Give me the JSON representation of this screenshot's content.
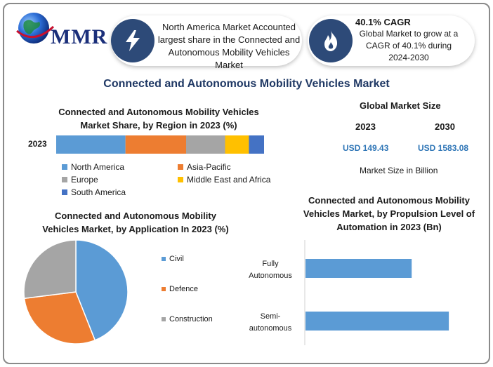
{
  "logo": {
    "text": "MMR"
  },
  "header": {
    "card1_text": "North America Market Accounted largest share in the Connected and Autonomous Mobility Vehicles Market",
    "card1_icon": "lightning-icon",
    "card2_title": "40.1% CAGR",
    "card2_text": "Global Market to grow at a CAGR of 40.1% during 2024-2030",
    "card2_icon": "flame-icon"
  },
  "main_title": "Connected and Autonomous Mobility Vehicles Market",
  "market_size": {
    "title": "Global Market Size",
    "year1": "2023",
    "year2": "2030",
    "value1": "USD 149.43",
    "value2": "USD 1583.08",
    "note": "Market Size in Billion"
  },
  "colors": {
    "north_america": "#5b9bd5",
    "asia_pacific": "#ed7d31",
    "europe": "#a5a5a5",
    "middle_east_africa": "#ffc000",
    "south_america": "#4472c4",
    "bar_blue": "#5b9bd5"
  },
  "chart_data": [
    {
      "type": "bar",
      "orientation": "horizontal-stacked",
      "title": "Connected and Autonomous Mobility Vehicles Market Share, by Region in 2023 (%)",
      "categories": [
        "2023"
      ],
      "series": [
        {
          "name": "North America",
          "values": [
            32
          ]
        },
        {
          "name": "Asia-Pacific",
          "values": [
            28
          ]
        },
        {
          "name": "Europe",
          "values": [
            18
          ]
        },
        {
          "name": "Middle East and Africa",
          "values": [
            11
          ]
        },
        {
          "name": "South America",
          "values": [
            7
          ]
        }
      ],
      "legend": "bottom"
    },
    {
      "type": "pie",
      "title": "Connected and Autonomous Mobility Vehicles Market, by Application In 2023 (%)",
      "labels": [
        "Civil",
        "Defence",
        "Construction"
      ],
      "values": [
        44,
        29,
        27
      ],
      "legend": "right"
    },
    {
      "type": "bar",
      "orientation": "horizontal",
      "title": "Connected and Autonomous Mobility Vehicles Market, by Propulsion Level of Automation in 2023 (Bn)",
      "categories": [
        "Fully Autonomous",
        "Semi-autonomous"
      ],
      "values": [
        60,
        81
      ],
      "xlim": [
        0,
        100
      ]
    }
  ]
}
